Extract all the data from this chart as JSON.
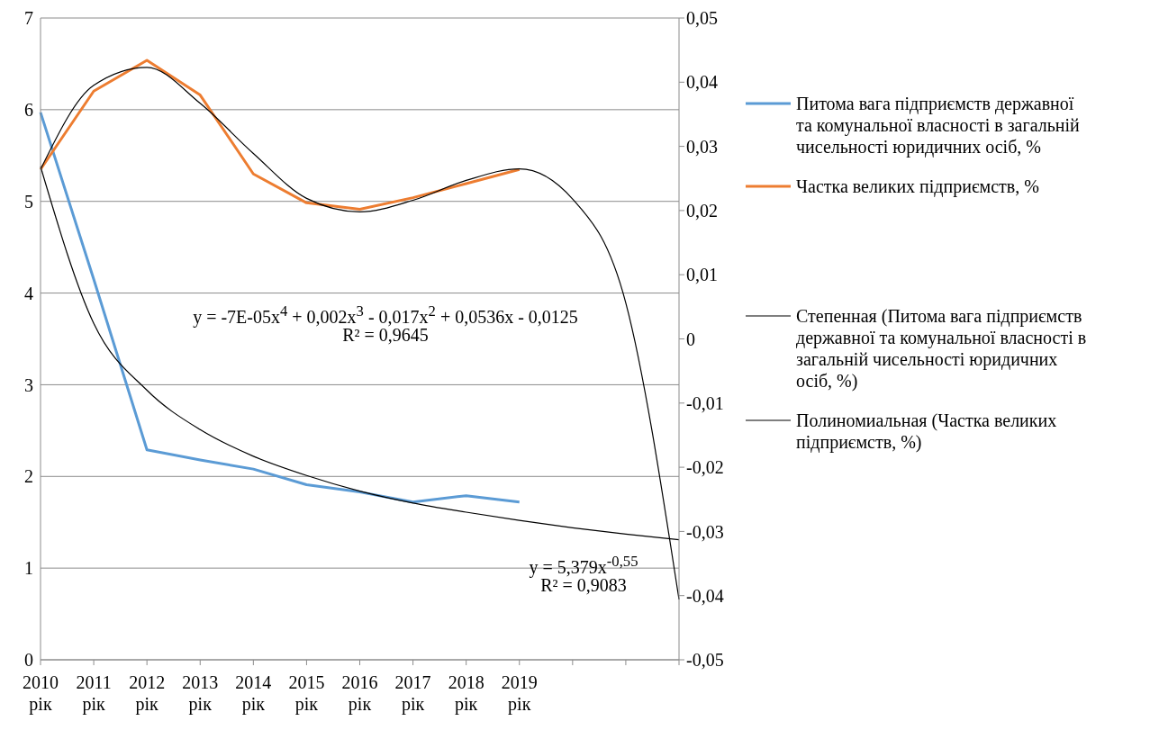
{
  "chart_data": {
    "type": "line",
    "categories": [
      "2010 рік",
      "2011 рік",
      "2012 рік",
      "2013 рік",
      "2014 рік",
      "2015 рік",
      "2016 рік",
      "2017 рік",
      "2018 рік",
      "2019 рік",
      null,
      null,
      null
    ],
    "series": [
      {
        "name": "Питома вага підприємств державної та комунальної власності в загальній чисельності юридичних осіб, %",
        "color": "#5b9bd5",
        "values": [
          5.97,
          4.15,
          2.29,
          2.18,
          2.08,
          1.91,
          1.83,
          1.72,
          1.79,
          1.72,
          null,
          null,
          null
        ]
      },
      {
        "name": "Частка великих підприємств, %",
        "color": "#ed7d31",
        "axis": "y2",
        "values": [
          0.0264,
          0.0386,
          0.0434,
          0.038,
          0.0257,
          0.0212,
          0.0202,
          0.022,
          0.0242,
          0.0264,
          null,
          null,
          null
        ]
      },
      {
        "name": "Степенная (Питома вага підприємств державної та комунальної власності в загальній чисельності юридичних осіб, %)",
        "color": "#000000",
        "values": [
          5.38,
          3.67,
          2.94,
          2.51,
          2.22,
          2.01,
          1.84,
          1.71,
          1.61,
          1.52,
          1.44,
          1.37,
          1.31
        ]
      },
      {
        "name": "Полиномиальная (Частка великих підприємств, %)",
        "color": "#000000",
        "axis": "y2",
        "values": [
          0.0264,
          0.0395,
          0.0423,
          0.0367,
          0.0289,
          0.0219,
          0.0198,
          0.0216,
          0.0247,
          0.0265,
          0.0218,
          0.0056,
          -0.0406
        ]
      }
    ],
    "ylim": [
      0,
      7
    ],
    "yticks": [
      0,
      1,
      2,
      3,
      4,
      5,
      6,
      7
    ],
    "y2lim": [
      -0.05,
      0.05
    ],
    "y2ticks": [
      {
        "value": -0.05,
        "label": "-0,05"
      },
      {
        "value": -0.04,
        "label": "-0,04"
      },
      {
        "value": -0.03,
        "label": "-0,03"
      },
      {
        "value": -0.02,
        "label": "-0,02"
      },
      {
        "value": -0.01,
        "label": "-0,01"
      },
      {
        "value": 0,
        "label": "0"
      },
      {
        "value": 0.01,
        "label": "0,01"
      },
      {
        "value": 0.02,
        "label": "0,02"
      },
      {
        "value": 0.03,
        "label": "0,03"
      },
      {
        "value": 0.04,
        "label": "0,04"
      },
      {
        "value": 0.05,
        "label": "0,05"
      }
    ],
    "grid": "y",
    "legend": "right",
    "marker": "none",
    "line_style": "solid",
    "annotations": [
      "y = -7E-05x$^{4}$ + 0,002x$^{3}$ - 0,017x$^{2}$ + 0,0536x - 0,0125",
      "R² = 0,9645",
      "y = 5,379x$^{-0,55}$",
      "R² = 0,9083"
    ]
  }
}
